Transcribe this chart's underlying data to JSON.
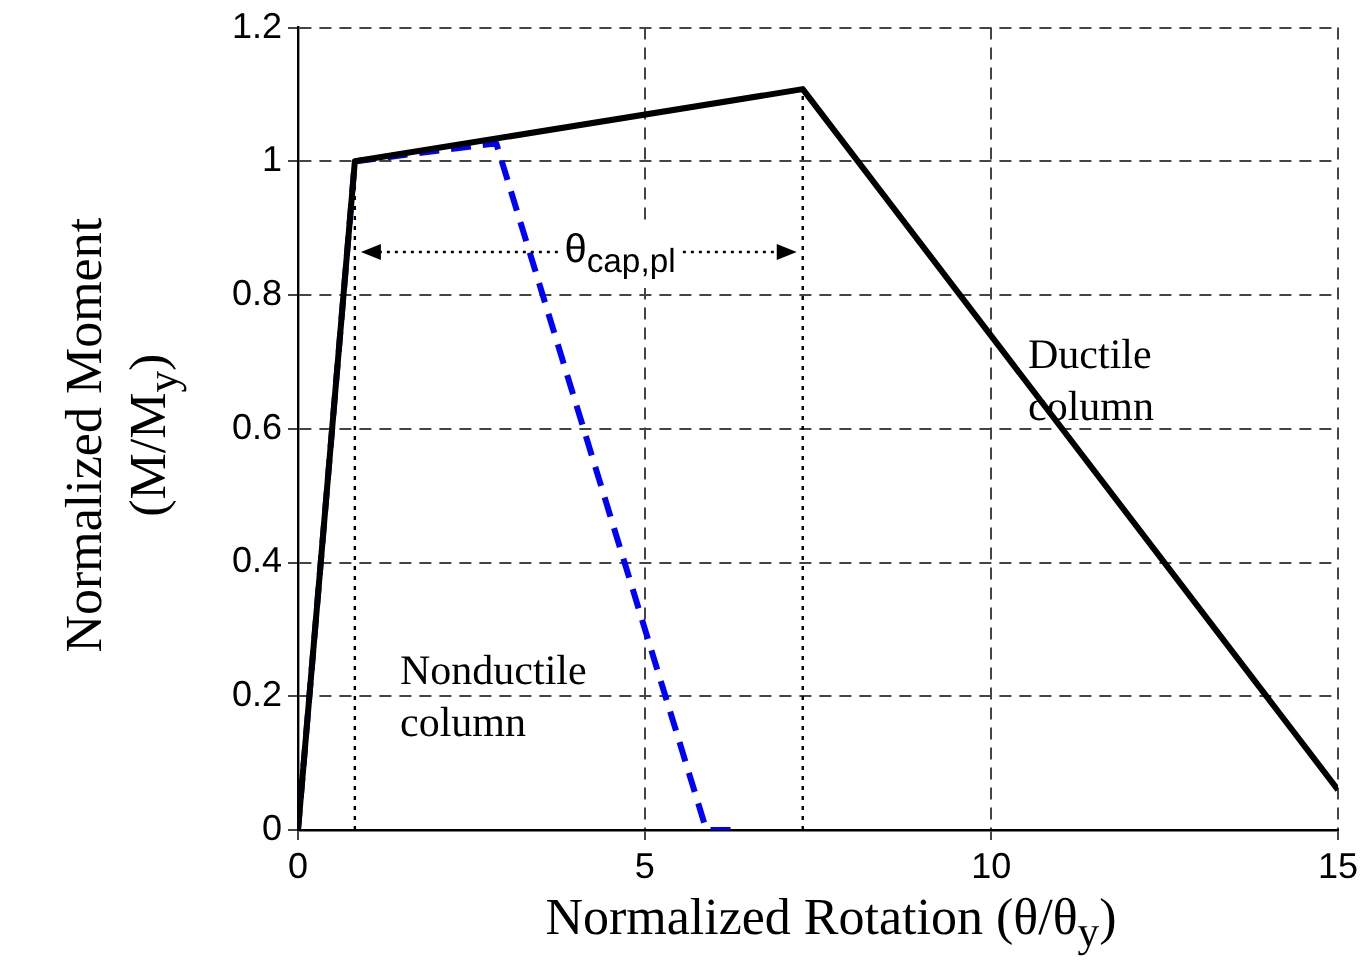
{
  "chart_data": {
    "type": "line",
    "xlabel": "Normalized Rotation (θ/θ$_{y}$)",
    "ylabel": "Normalized Moment (M/M$_{y}$)",
    "xlim": [
      0,
      15
    ],
    "xticks": [
      0,
      5,
      10,
      15
    ],
    "ylim": [
      0,
      1.2
    ],
    "yticks": [
      0,
      0.2,
      0.4,
      0.6,
      0.8,
      1,
      1.2
    ],
    "grid": true,
    "legend": false,
    "marker": "none",
    "series": [
      {
        "color": "#000000",
        "line_style": "solid",
        "x": [
          0,
          0.82,
          7.28,
          15
        ],
        "values": [
          0,
          1,
          1.108,
          0.06
        ]
      },
      {
        "color": "#0000ff",
        "line_style": "dashed",
        "x": [
          0,
          0.82,
          2.86,
          5.89,
          6.35
        ],
        "values": [
          0,
          1,
          1.027,
          0,
          0
        ]
      }
    ],
    "ref_lines": [
      {
        "axis": "x",
        "value": 0.82,
        "color": "#000000",
        "line_style": "dotted"
      },
      {
        "axis": "x",
        "value": 7.28,
        "color": "#000000",
        "line_style": "dotted"
      }
    ],
    "annotations": [
      "θ$_{cap,pl}$",
      "Ductile\ncolumn",
      "Nonductile\ncolumn"
    ]
  }
}
